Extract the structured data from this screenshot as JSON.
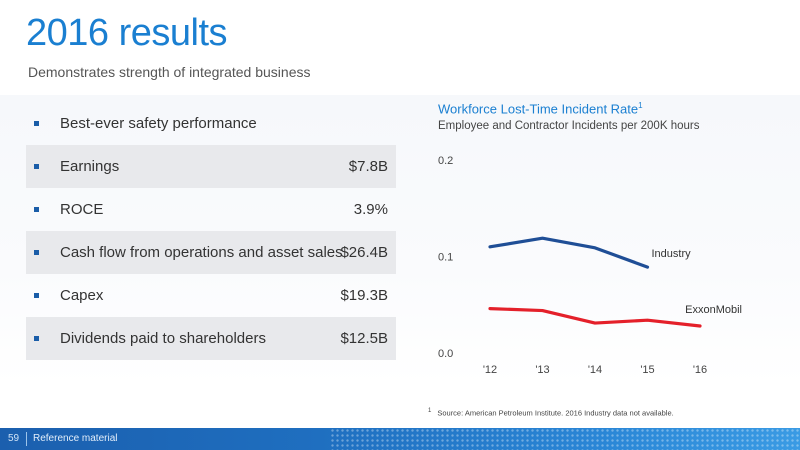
{
  "slide": {
    "title": "2016 results",
    "subtitle": "Demonstrates strength of integrated business"
  },
  "results": [
    {
      "label": "Best-ever safety performance",
      "value": ""
    },
    {
      "label": "Earnings",
      "value": "$7.8B"
    },
    {
      "label": "ROCE",
      "value": "3.9%"
    },
    {
      "label": "Cash flow from operations and asset sales",
      "value": "$26.4B"
    },
    {
      "label": "Capex",
      "value": "$19.3B"
    },
    {
      "label": "Dividends paid to shareholders",
      "value": "$12.5B"
    }
  ],
  "chart_data": {
    "type": "line",
    "title": "Workforce Lost-Time Incident Rate",
    "title_footnote_mark": "1",
    "subtitle": "Employee and Contractor Incidents per 200K hours",
    "categories": [
      "'12",
      "'13",
      "'14",
      "'15",
      "'16"
    ],
    "ylim": [
      0.0,
      0.2
    ],
    "yticks": [
      "0.0",
      "0.1",
      "0.2"
    ],
    "grid": false,
    "series": [
      {
        "name": "Industry",
        "color": "#1f4e96",
        "values": [
          0.11,
          0.119,
          0.109,
          0.089,
          null
        ]
      },
      {
        "name": "ExxonMobil",
        "color": "#e4202a",
        "values": [
          0.046,
          0.044,
          0.031,
          0.034,
          0.028
        ]
      }
    ]
  },
  "footnote": {
    "mark": "1",
    "text": "Source: American Petroleum Institute. 2016 Industry data not available."
  },
  "footer": {
    "page_number": "59",
    "label": "Reference material"
  }
}
